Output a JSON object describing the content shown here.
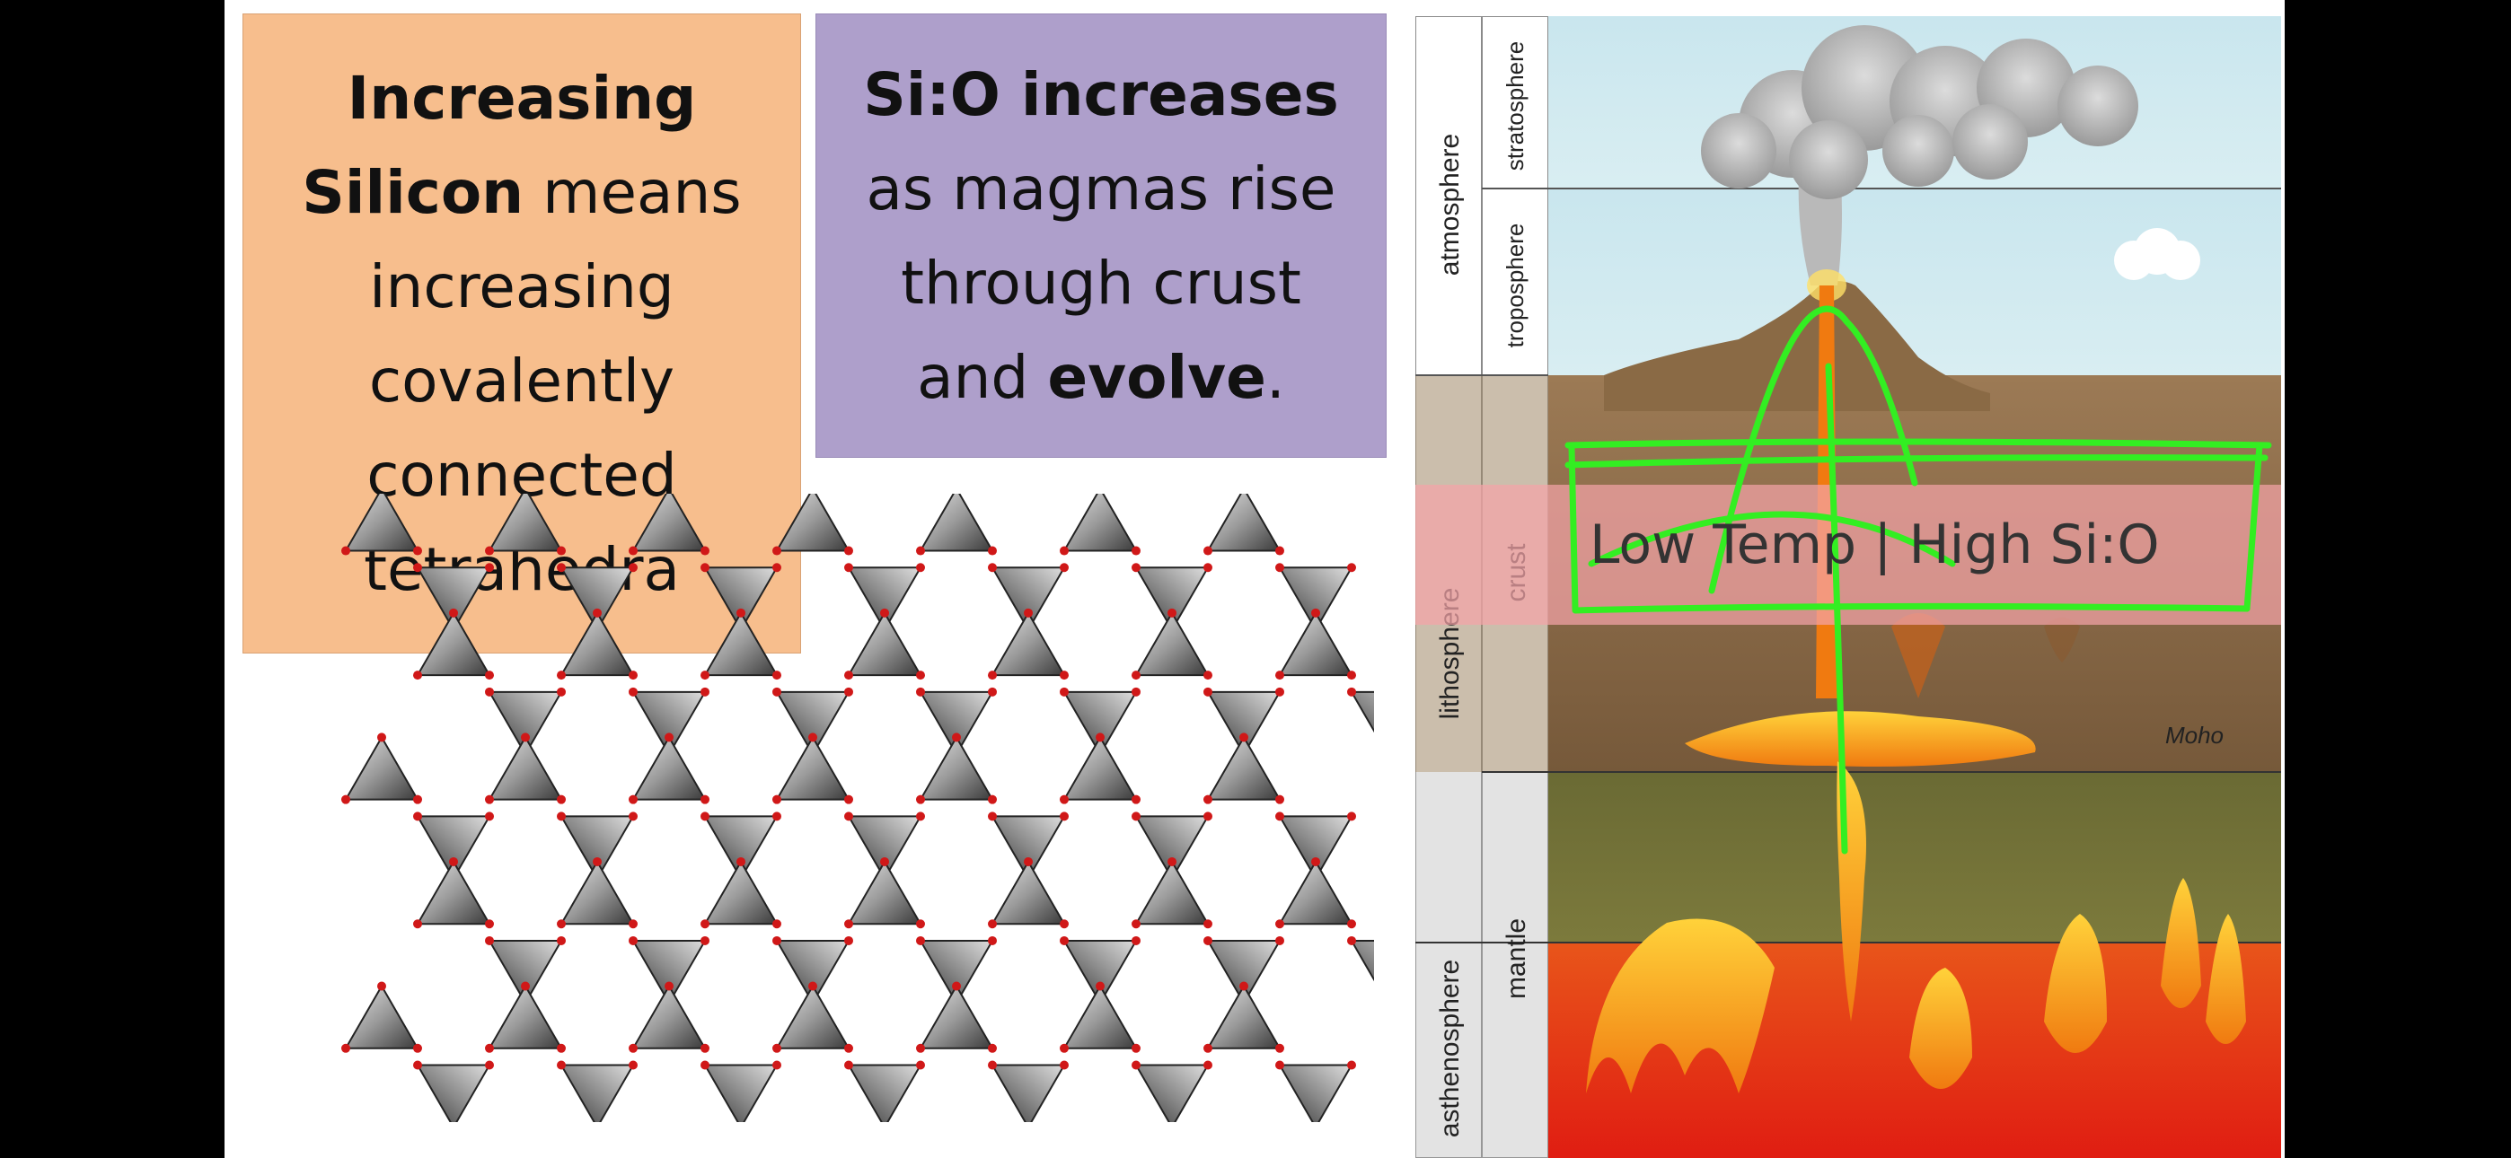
{
  "box_left": {
    "line1_bold": "Increasing",
    "line2_bold": "Silicon",
    "line2_rest": " means",
    "line3": "increasing",
    "line4": "covalently",
    "line5": "connected",
    "line6": "tetrahedra"
  },
  "box_right": {
    "line1_bold": "Si:O increases",
    "line2": "as magmas rise",
    "line3": "through crust",
    "line4_pre": "and ",
    "line4_bold": "evolve",
    "line4_post": "."
  },
  "diagram": {
    "outer_labels": {
      "top": "atmosphere",
      "middle": "lithosphere",
      "bottom": "asthenosphere"
    },
    "inner_labels": {
      "stratosphere": "stratosphere",
      "troposphere": "troposphere",
      "crust": "crust",
      "mantle": "mantle"
    },
    "moho": "Moho",
    "overlay_text": "Low Temp | High Si:O"
  },
  "colors": {
    "orange_box": "#f7be8d",
    "purple_box": "#ae9fcb",
    "annotation_green": "#33ee22",
    "overlay_pink": "#f4a3a8"
  }
}
